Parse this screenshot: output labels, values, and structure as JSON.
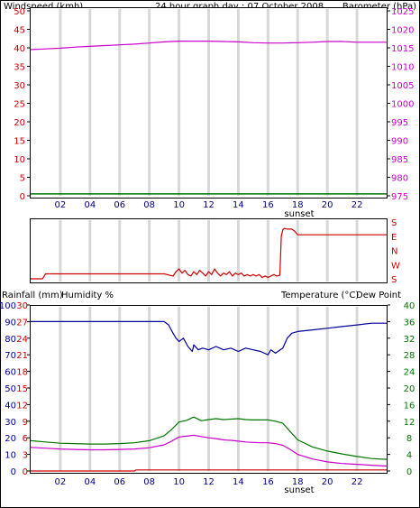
{
  "title": "24 hour graph day : 07 October 2008",
  "colors": {
    "wind": "#cc0000",
    "baro": "#cc00cc",
    "grid": "#d8d8d8",
    "humidity": "#000099",
    "temp": "#007700",
    "dew": "#cc00cc",
    "rain": "#cc0000",
    "axis_dark": "#000080"
  },
  "x_ticks": [
    "02",
    "04",
    "06",
    "08",
    "10",
    "12",
    "14",
    "16",
    "18",
    "20",
    "22"
  ],
  "sunset_label": "sunset",
  "chart_data": [
    {
      "type": "line",
      "name": "wind_barometer",
      "left_label": "Windspeed (kmh)",
      "right_label": "Barometer (hPa)",
      "left_ticks": [
        0,
        5,
        10,
        15,
        20,
        25,
        30,
        35,
        40,
        45,
        50
      ],
      "right_ticks": [
        975,
        980,
        985,
        990,
        995,
        1000,
        1005,
        1010,
        1015,
        1020,
        1025
      ],
      "xlim": [
        0,
        24
      ],
      "ylim_left": [
        0,
        50
      ],
      "ylim_right": [
        975,
        1025
      ],
      "series": [
        {
          "name": "Windspeed (kmh)",
          "axis": "left",
          "x": [
            0,
            24
          ],
          "values": [
            0.5,
            0.5
          ]
        },
        {
          "name": "Barometer (hPa)",
          "axis": "right",
          "x": [
            0,
            1,
            2,
            3,
            4,
            5,
            6,
            7,
            8,
            9,
            10,
            11,
            12,
            13,
            14,
            15,
            16,
            17,
            18,
            19,
            20,
            21,
            22,
            23,
            24
          ],
          "values": [
            1014.5,
            1014.7,
            1014.9,
            1015.2,
            1015.4,
            1015.6,
            1015.8,
            1016.0,
            1016.3,
            1016.6,
            1016.8,
            1016.8,
            1016.8,
            1016.7,
            1016.6,
            1016.4,
            1016.3,
            1016.3,
            1016.4,
            1016.5,
            1016.7,
            1016.7,
            1016.5,
            1016.5,
            1016.5
          ]
        }
      ]
    },
    {
      "type": "line",
      "name": "wind_direction",
      "right_ticks": [
        "S",
        "E",
        "N",
        "W",
        "S"
      ],
      "xlim": [
        0,
        24
      ],
      "ylim": [
        0,
        4
      ],
      "series": [
        {
          "name": "Wind direction",
          "x": [
            0,
            0.8,
            1,
            9,
            9.6,
            9.8,
            10,
            10.2,
            10.4,
            10.6,
            10.8,
            11,
            11.2,
            11.4,
            11.6,
            11.8,
            12,
            12.2,
            12.4,
            12.6,
            12.8,
            13,
            13.2,
            13.4,
            13.6,
            13.8,
            14,
            14.2,
            14.4,
            14.6,
            14.8,
            15,
            15.2,
            15.4,
            15.6,
            15.8,
            16,
            16.2,
            16.4,
            16.6,
            16.8,
            16.9,
            17,
            17.1,
            17.3,
            17.6,
            17.8,
            18,
            24
          ],
          "values": [
            0,
            0,
            0.35,
            0.35,
            0.2,
            0.5,
            0.7,
            0.4,
            0.6,
            0.3,
            0.2,
            0.5,
            0.3,
            0.6,
            0.4,
            0.2,
            0.5,
            0.3,
            0.7,
            0.4,
            0.2,
            0.4,
            0.3,
            0.5,
            0.2,
            0.4,
            0.3,
            0.4,
            0.2,
            0.3,
            0.2,
            0.3,
            0.2,
            0.3,
            0.1,
            0.2,
            0.1,
            0.2,
            0.3,
            0.2,
            0.25,
            3.0,
            3.45,
            3.55,
            3.5,
            3.5,
            3.35,
            3.1,
            3.1
          ]
        }
      ]
    },
    {
      "type": "line",
      "name": "rain_humidity_temp",
      "left_label_rain": "Rainfall (mm)",
      "left_label_hum": "Humidity %",
      "right_label_temp": "Temperature (°C)",
      "right_label_dew": "Dew Point",
      "humidity_ticks": [
        0,
        10,
        20,
        30,
        40,
        50,
        60,
        70,
        80,
        90,
        100
      ],
      "rain_ticks": [
        0,
        3,
        6,
        9,
        12,
        15,
        18,
        21,
        24,
        27,
        30
      ],
      "temp_ticks": [
        0,
        4,
        8,
        12,
        16,
        20,
        24,
        28,
        32,
        36,
        40
      ],
      "xlim": [
        0,
        24
      ],
      "ylim_humidity": [
        0,
        100
      ],
      "ylim_temp": [
        0,
        40
      ],
      "series": [
        {
          "name": "Humidity %",
          "axis": "humidity",
          "x": [
            0,
            9,
            9.3,
            9.6,
            9.8,
            10,
            10.3,
            10.6,
            10.9,
            11,
            11.3,
            11.6,
            12,
            12.5,
            13,
            13.5,
            14,
            14.5,
            15,
            15.5,
            16,
            16.2,
            16.5,
            17,
            17.3,
            17.6,
            18,
            19,
            20,
            21,
            22,
            23,
            24
          ],
          "values": [
            90,
            90,
            88,
            83,
            80,
            78,
            80,
            75,
            72,
            76,
            73,
            74,
            73,
            75,
            73,
            74,
            72,
            74,
            73,
            72,
            70,
            73,
            71,
            74,
            80,
            83,
            84,
            85,
            86,
            87,
            88,
            89,
            89
          ]
        },
        {
          "name": "Temperature (°C)",
          "axis": "temp",
          "x": [
            0,
            1,
            2,
            3,
            4,
            5,
            6,
            7,
            8,
            9,
            9.5,
            10,
            10.5,
            11,
            11.5,
            12,
            12.5,
            13,
            13.5,
            14,
            14.5,
            15,
            15.5,
            16,
            16.5,
            17,
            17.5,
            18,
            19,
            20,
            21,
            22,
            23,
            24
          ],
          "values": [
            7.3,
            7.0,
            6.7,
            6.6,
            6.5,
            6.5,
            6.6,
            6.8,
            7.3,
            8.5,
            10.0,
            11.8,
            12.2,
            13.0,
            12.1,
            12.4,
            12.6,
            12.4,
            12.5,
            12.6,
            12.4,
            12.3,
            12.3,
            12.3,
            12.0,
            11.5,
            9.5,
            7.5,
            5.8,
            4.8,
            4.1,
            3.5,
            3.0,
            2.8
          ]
        },
        {
          "name": "Dew Point",
          "axis": "temp",
          "x": [
            0,
            1,
            2,
            3,
            4,
            5,
            6,
            7,
            8,
            9,
            9.5,
            10,
            10.5,
            11,
            11.5,
            12,
            12.5,
            13,
            13.5,
            14,
            14.5,
            15,
            15.5,
            16,
            16.5,
            17,
            17.5,
            18,
            19,
            20,
            21,
            22,
            23,
            24
          ],
          "values": [
            5.7,
            5.5,
            5.3,
            5.2,
            5.1,
            5.1,
            5.2,
            5.3,
            5.6,
            6.3,
            7.2,
            8.2,
            8.4,
            8.6,
            8.3,
            8.0,
            7.8,
            7.5,
            7.4,
            7.2,
            7.0,
            6.9,
            6.8,
            6.8,
            6.6,
            6.2,
            5.2,
            4.0,
            2.9,
            2.2,
            1.8,
            1.6,
            1.4,
            1.2
          ]
        },
        {
          "name": "Rainfall (mm)",
          "axis": "rain",
          "x": [
            0,
            7,
            7.1,
            24
          ],
          "values": [
            0,
            0,
            0.2,
            0.2
          ]
        }
      ]
    }
  ]
}
